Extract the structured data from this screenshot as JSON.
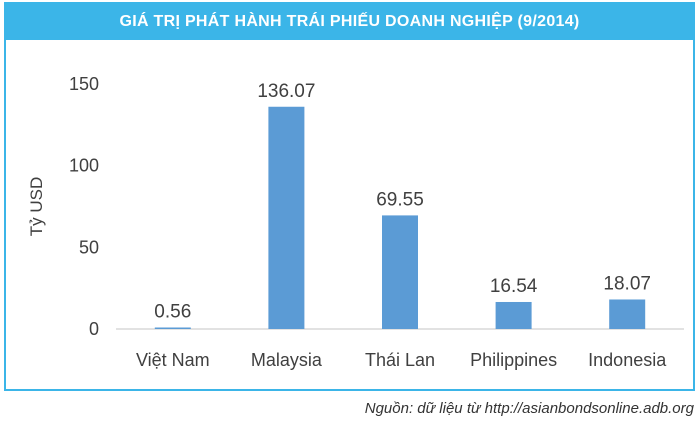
{
  "chart_data": {
    "type": "bar",
    "title": "GIÁ TRỊ PHÁT HÀNH TRÁI PHIẾU DOANH NGHIỆP (9/2014)",
    "ylabel": "Tỷ USD",
    "xlabel": "",
    "categories": [
      "Việt Nam",
      "Malaysia",
      "Thái Lan",
      "Philippines",
      "Indonesia"
    ],
    "values": [
      0.56,
      136.07,
      69.55,
      16.54,
      18.07
    ],
    "value_labels": [
      "0.56",
      "136.07",
      "69.55",
      "16.54",
      "18.07"
    ],
    "yticks": [
      0,
      50,
      100,
      150
    ],
    "ylim": [
      0,
      150
    ],
    "grid": false,
    "legend": "none",
    "bar_color": "#5b9bd5"
  },
  "source": "Nguồn: dữ liệu từ http://asianbondsonline.adb.org",
  "colors": {
    "accent": "#3bb5e8",
    "bar": "#5b9bd5"
  }
}
